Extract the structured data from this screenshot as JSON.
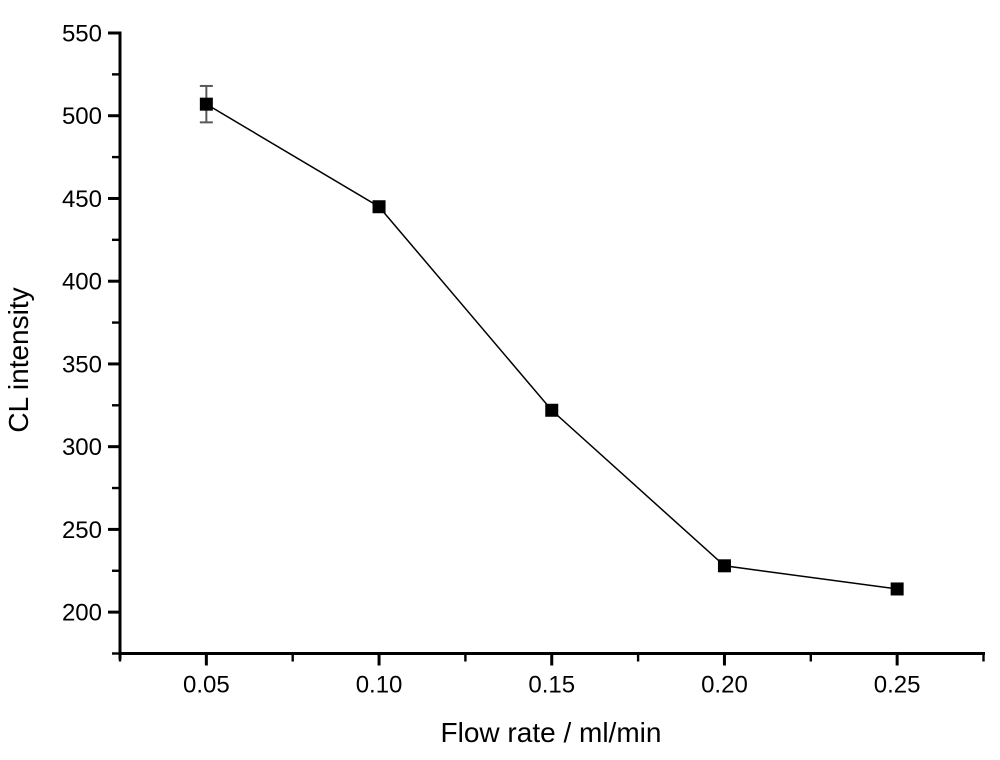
{
  "chart_data": {
    "type": "line",
    "title": "",
    "xlabel": "Flow rate / ml/min",
    "ylabel": "CL intensity",
    "xlim": [
      0.025,
      0.275
    ],
    "ylim": [
      175,
      550
    ],
    "grid": false,
    "legend": false,
    "background_color": "#ffffff",
    "axis_color": "#000000",
    "error_bar_color": "#595959",
    "x_ticks": {
      "major": [
        0.05,
        0.1,
        0.15,
        0.2,
        0.25
      ],
      "major_labels": [
        "0.05",
        "0.10",
        "0.15",
        "0.20",
        "0.25"
      ],
      "minor": [
        0.025,
        0.075,
        0.125,
        0.175,
        0.225,
        0.275
      ]
    },
    "y_ticks": {
      "major": [
        200,
        250,
        300,
        350,
        400,
        450,
        500,
        550
      ],
      "major_labels": [
        "200",
        "250",
        "300",
        "350",
        "400",
        "450",
        "500",
        "550"
      ],
      "minor": [
        175,
        225,
        275,
        325,
        375,
        425,
        475,
        525
      ]
    },
    "series": [
      {
        "name": "CL intensity",
        "marker": "filled-square",
        "line_color": "#000000",
        "marker_color": "#000000",
        "x": [
          0.05,
          0.1,
          0.15,
          0.2,
          0.25
        ],
        "y": [
          507,
          445,
          322,
          228,
          214
        ],
        "y_err": [
          11,
          0,
          0,
          0,
          0
        ]
      }
    ]
  }
}
